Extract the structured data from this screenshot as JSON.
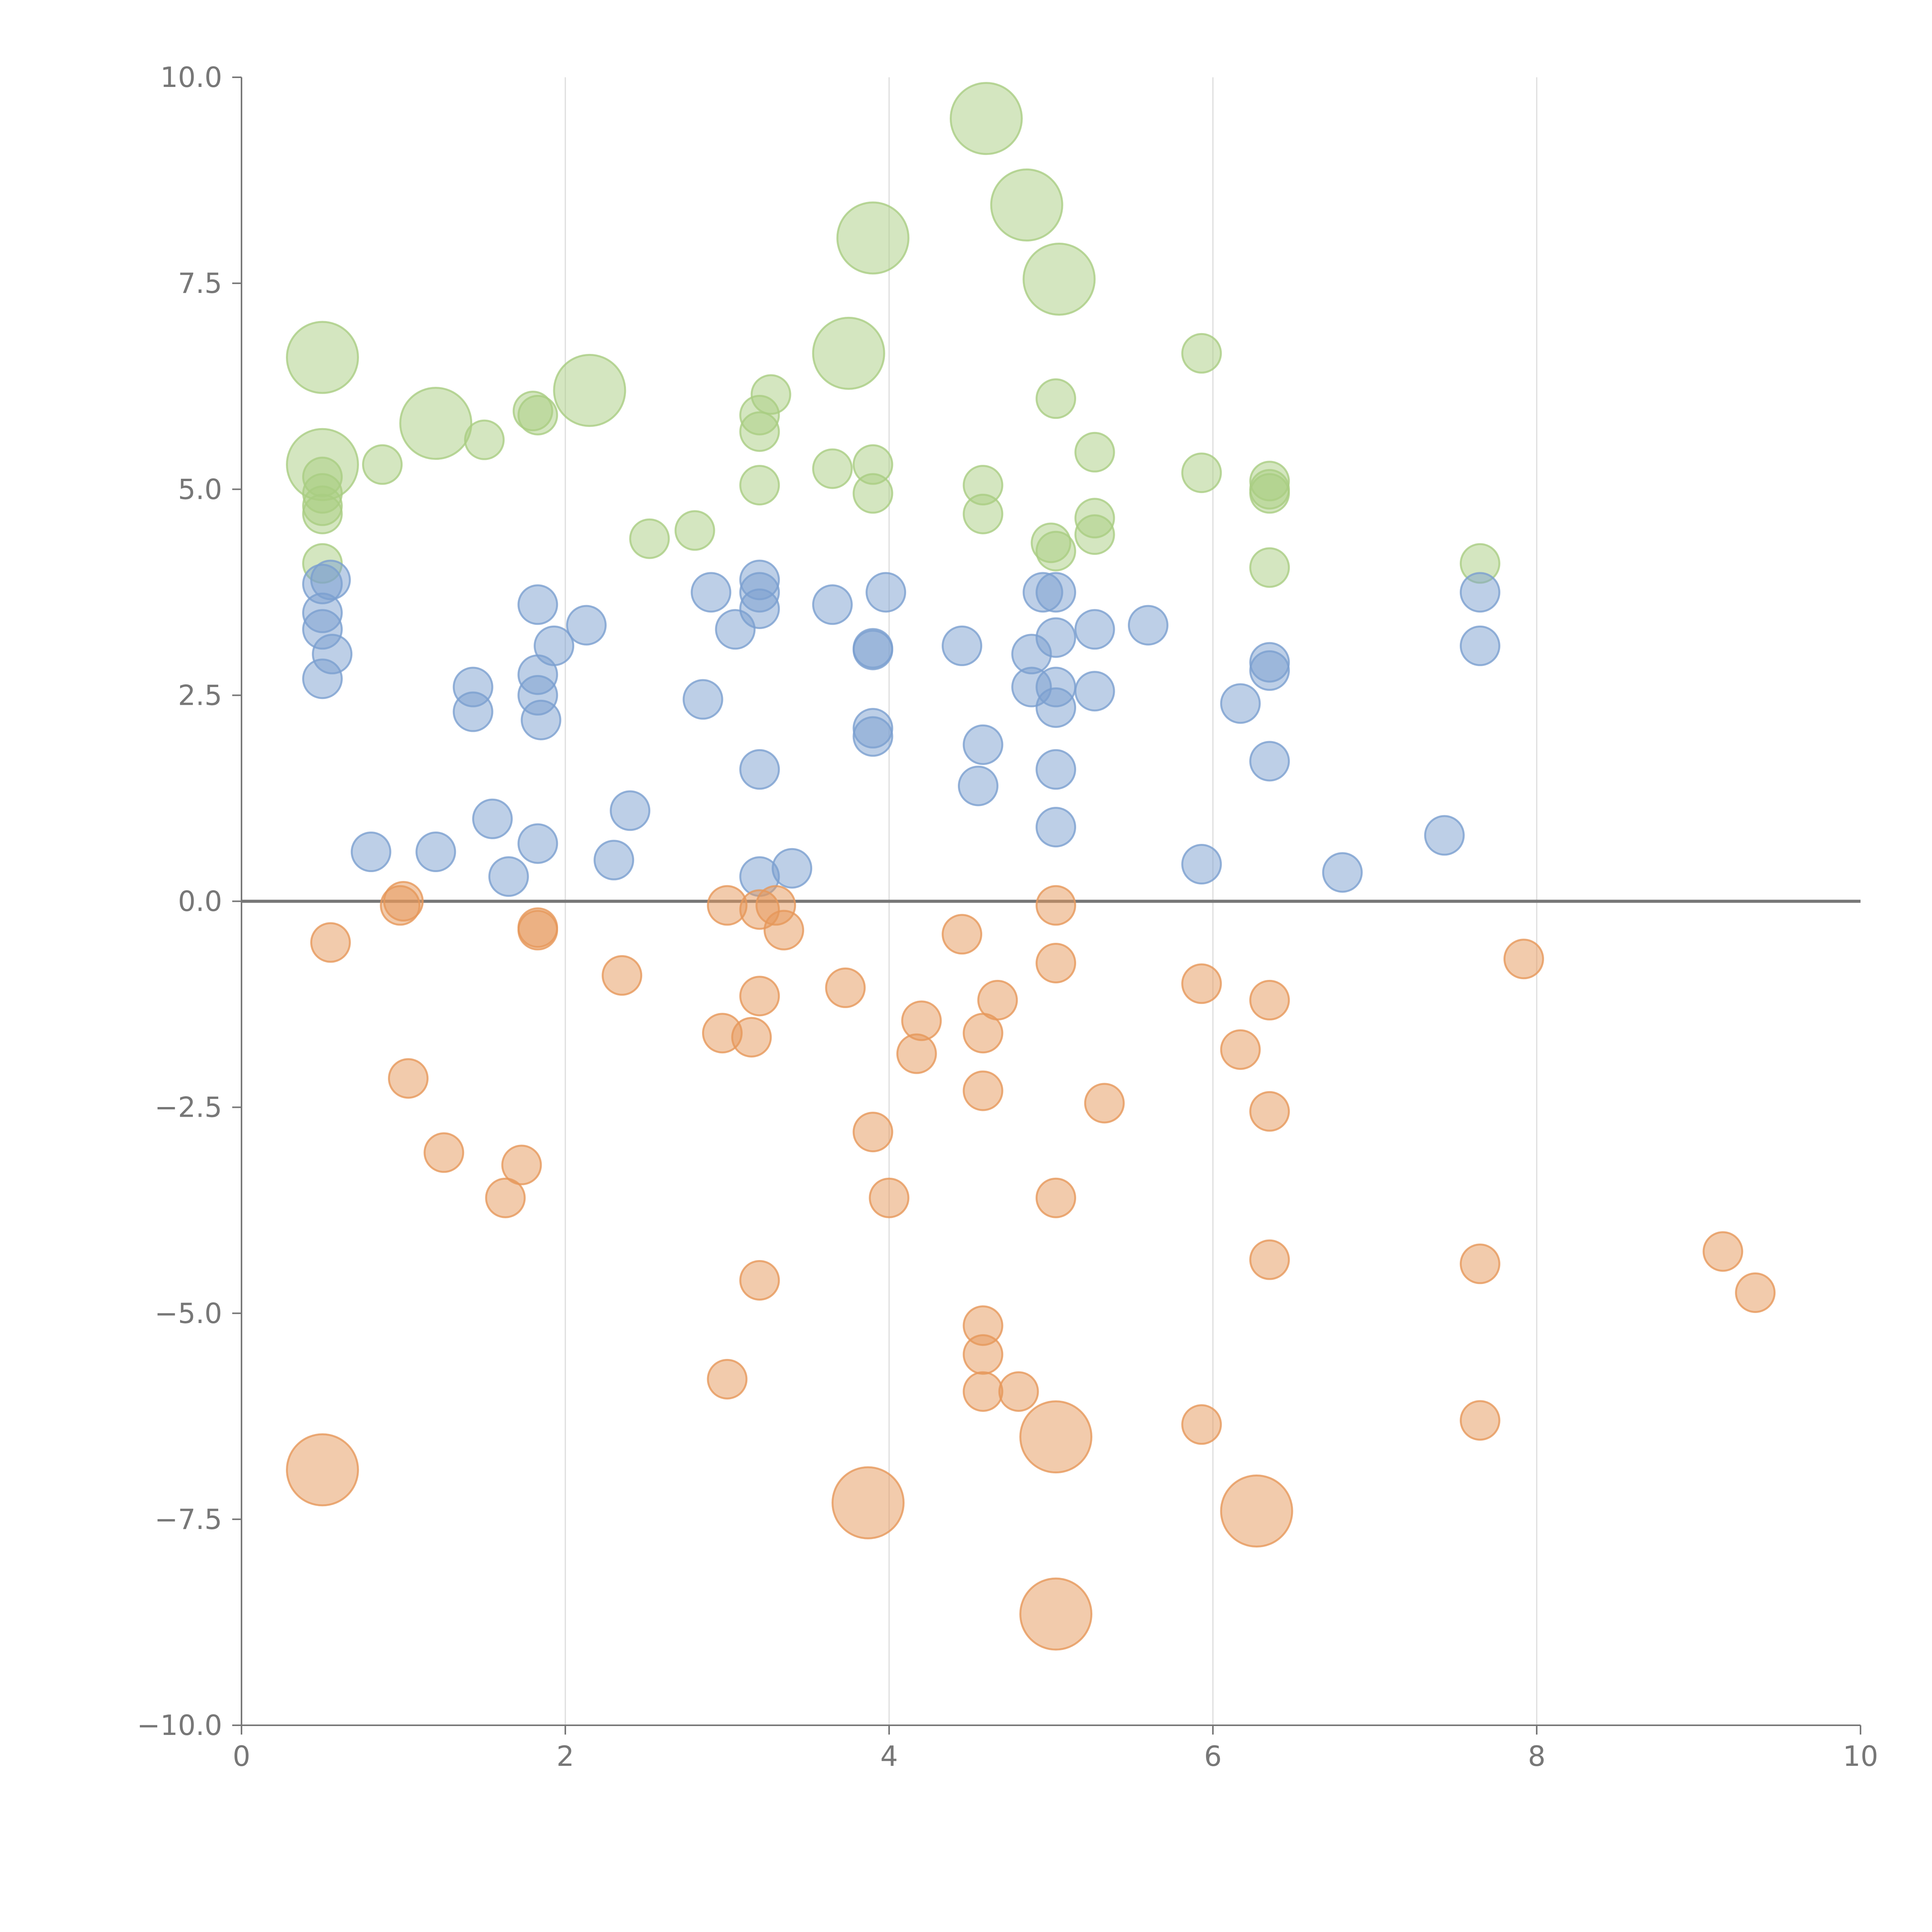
{
  "chart_data": {
    "type": "scatter",
    "title": "",
    "xlabel": "",
    "ylabel": "",
    "xlim": [
      0,
      10
    ],
    "ylim": [
      -10,
      10
    ],
    "grid": "vertical",
    "legend": "none",
    "zero_line": 0,
    "x_ticks": [
      0,
      2,
      4,
      6,
      8,
      10
    ],
    "x_tick_labels": [
      "0",
      "2",
      "4",
      "6",
      "8",
      "10"
    ],
    "y_ticks": [
      10,
      7.5,
      5,
      2.5,
      0,
      -2.5,
      -5,
      -7.5,
      -10
    ],
    "y_tick_labels": [
      "10.0",
      "7.5",
      "5.0",
      "2.5",
      "0.0",
      "−2.5",
      "−5.0",
      "−7.5",
      "−10.0"
    ],
    "colors": {
      "green": "#a9cd82",
      "blue": "#7b9fcf",
      "orange": "#e6975a",
      "axis": "#777777",
      "grid": "#dddddd",
      "zero_line": "#777777"
    },
    "series": [
      {
        "name": "green",
        "color": "#a9cd82",
        "points": [
          [
            0.5,
            6.6,
            "L"
          ],
          [
            0.5,
            5.3,
            "L"
          ],
          [
            1.2,
            5.8,
            "L"
          ],
          [
            2.15,
            6.2,
            "L"
          ],
          [
            3.75,
            6.65,
            "L"
          ],
          [
            3.9,
            8.05,
            "L"
          ],
          [
            4.6,
            9.5,
            "L"
          ],
          [
            4.85,
            8.45,
            "L"
          ],
          [
            5.05,
            7.55,
            "L"
          ],
          [
            0.5,
            5.15,
            "S"
          ],
          [
            0.5,
            4.95,
            "S"
          ],
          [
            0.5,
            4.8,
            "S"
          ],
          [
            0.5,
            4.7,
            "S"
          ],
          [
            0.5,
            4.1,
            "S"
          ],
          [
            0.87,
            5.3,
            "S"
          ],
          [
            1.5,
            5.6,
            "S"
          ],
          [
            1.8,
            5.95,
            "S"
          ],
          [
            1.83,
            5.9,
            "S"
          ],
          [
            2.52,
            4.4,
            "S"
          ],
          [
            2.8,
            4.5,
            "S"
          ],
          [
            3.2,
            5.9,
            "S"
          ],
          [
            3.2,
            5.7,
            "S"
          ],
          [
            3.2,
            5.05,
            "S"
          ],
          [
            3.27,
            6.15,
            "S"
          ],
          [
            3.65,
            5.25,
            "S"
          ],
          [
            3.9,
            5.3,
            "S"
          ],
          [
            3.9,
            4.95,
            "S"
          ],
          [
            4.58,
            5.05,
            "S"
          ],
          [
            4.58,
            4.7,
            "S"
          ],
          [
            5.0,
            4.35,
            "S"
          ],
          [
            5.03,
            4.25,
            "S"
          ],
          [
            5.03,
            6.1,
            "S"
          ],
          [
            5.27,
            5.45,
            "S"
          ],
          [
            5.27,
            4.65,
            "S"
          ],
          [
            5.27,
            4.45,
            "S"
          ],
          [
            5.93,
            6.65,
            "S"
          ],
          [
            5.93,
            5.2,
            "S"
          ],
          [
            6.35,
            5.1,
            "S"
          ],
          [
            6.35,
            5.0,
            "S"
          ],
          [
            6.35,
            4.95,
            "S"
          ],
          [
            6.35,
            4.05,
            "S"
          ],
          [
            7.65,
            4.1,
            "S"
          ]
        ]
      },
      {
        "name": "blue",
        "color": "#7b9fcf",
        "points": [
          [
            0.5,
            3.85,
            "S"
          ],
          [
            0.55,
            3.9,
            "S"
          ],
          [
            0.5,
            3.5,
            "S"
          ],
          [
            0.5,
            3.3,
            "S"
          ],
          [
            0.56,
            3.0,
            "S"
          ],
          [
            0.5,
            2.7,
            "S"
          ],
          [
            0.8,
            0.6,
            "S"
          ],
          [
            1.2,
            0.6,
            "S"
          ],
          [
            1.43,
            2.6,
            "S"
          ],
          [
            1.43,
            2.3,
            "S"
          ],
          [
            1.55,
            1.0,
            "S"
          ],
          [
            1.65,
            0.3,
            "S"
          ],
          [
            1.83,
            3.6,
            "S"
          ],
          [
            1.83,
            2.75,
            "S"
          ],
          [
            1.83,
            2.5,
            "S"
          ],
          [
            1.85,
            2.2,
            "S"
          ],
          [
            1.83,
            0.7,
            "S"
          ],
          [
            1.93,
            3.1,
            "S"
          ],
          [
            2.13,
            3.35,
            "S"
          ],
          [
            2.3,
            0.5,
            "S"
          ],
          [
            2.4,
            1.1,
            "S"
          ],
          [
            2.85,
            2.45,
            "S"
          ],
          [
            2.9,
            3.75,
            "S"
          ],
          [
            3.05,
            3.3,
            "S"
          ],
          [
            3.2,
            3.9,
            "S"
          ],
          [
            3.2,
            3.75,
            "S"
          ],
          [
            3.2,
            3.55,
            "S"
          ],
          [
            3.2,
            1.6,
            "S"
          ],
          [
            3.2,
            0.3,
            "S"
          ],
          [
            3.4,
            0.4,
            "S"
          ],
          [
            3.65,
            3.6,
            "S"
          ],
          [
            3.9,
            3.05,
            "S"
          ],
          [
            3.9,
            3.07,
            "S"
          ],
          [
            3.9,
            2.1,
            "S"
          ],
          [
            3.9,
            2.0,
            "S"
          ],
          [
            3.98,
            3.75,
            "S"
          ],
          [
            4.45,
            3.1,
            "S"
          ],
          [
            4.55,
            1.4,
            "S"
          ],
          [
            4.58,
            1.9,
            "S"
          ],
          [
            4.88,
            3.0,
            "S"
          ],
          [
            4.88,
            2.6,
            "S"
          ],
          [
            4.95,
            3.75,
            "S"
          ],
          [
            5.03,
            3.75,
            "S"
          ],
          [
            5.03,
            3.2,
            "S"
          ],
          [
            5.03,
            2.6,
            "S"
          ],
          [
            5.03,
            2.35,
            "S"
          ],
          [
            5.03,
            1.6,
            "S"
          ],
          [
            5.03,
            0.9,
            "S"
          ],
          [
            5.27,
            3.3,
            "S"
          ],
          [
            5.27,
            2.55,
            "S"
          ],
          [
            5.6,
            3.35,
            "S"
          ],
          [
            5.93,
            0.45,
            "S"
          ],
          [
            6.17,
            2.4,
            "S"
          ],
          [
            6.35,
            2.9,
            "S"
          ],
          [
            6.35,
            2.8,
            "S"
          ],
          [
            6.35,
            1.7,
            "S"
          ],
          [
            6.8,
            0.35,
            "S"
          ],
          [
            7.43,
            0.8,
            "S"
          ],
          [
            7.65,
            3.75,
            "S"
          ],
          [
            7.65,
            3.1,
            "S"
          ]
        ]
      },
      {
        "name": "orange",
        "color": "#e6975a",
        "points": [
          [
            0.5,
            -6.9,
            "L"
          ],
          [
            3.87,
            -7.3,
            "L"
          ],
          [
            5.03,
            -6.5,
            "L"
          ],
          [
            5.03,
            -8.65,
            "L"
          ],
          [
            6.27,
            -7.4,
            "L"
          ],
          [
            0.55,
            -0.5,
            "S"
          ],
          [
            0.98,
            -0.05,
            "S"
          ],
          [
            1.0,
            0.0,
            "S"
          ],
          [
            1.03,
            -2.15,
            "S"
          ],
          [
            1.25,
            -3.05,
            "S"
          ],
          [
            1.63,
            -3.6,
            "S"
          ],
          [
            1.73,
            -3.2,
            "S"
          ],
          [
            1.83,
            -0.35,
            "S"
          ],
          [
            1.83,
            -0.32,
            "S"
          ],
          [
            2.35,
            -0.9,
            "S"
          ],
          [
            2.97,
            -1.6,
            "S"
          ],
          [
            3.0,
            -0.05,
            "S"
          ],
          [
            3.0,
            -5.8,
            "S"
          ],
          [
            3.15,
            -1.65,
            "S"
          ],
          [
            3.2,
            -1.15,
            "S"
          ],
          [
            3.2,
            -0.1,
            "S"
          ],
          [
            3.2,
            -4.6,
            "S"
          ],
          [
            3.3,
            -0.05,
            "S"
          ],
          [
            3.35,
            -0.35,
            "S"
          ],
          [
            3.73,
            -1.05,
            "S"
          ],
          [
            3.9,
            -2.8,
            "S"
          ],
          [
            4.0,
            -3.6,
            "S"
          ],
          [
            4.17,
            -1.85,
            "S"
          ],
          [
            4.2,
            -1.45,
            "S"
          ],
          [
            4.45,
            -0.4,
            "S"
          ],
          [
            4.58,
            -1.6,
            "S"
          ],
          [
            4.58,
            -2.3,
            "S"
          ],
          [
            4.58,
            -5.15,
            "S"
          ],
          [
            4.58,
            -5.5,
            "S"
          ],
          [
            4.58,
            -5.95,
            "S"
          ],
          [
            4.67,
            -1.2,
            "S"
          ],
          [
            4.8,
            -5.95,
            "S"
          ],
          [
            5.03,
            -0.05,
            "S"
          ],
          [
            5.03,
            -0.75,
            "S"
          ],
          [
            5.03,
            -3.6,
            "S"
          ],
          [
            5.33,
            -2.45,
            "S"
          ],
          [
            5.93,
            -1.0,
            "S"
          ],
          [
            5.93,
            -6.35,
            "S"
          ],
          [
            6.17,
            -1.8,
            "S"
          ],
          [
            6.35,
            -1.2,
            "S"
          ],
          [
            6.35,
            -2.55,
            "S"
          ],
          [
            6.35,
            -4.35,
            "S"
          ],
          [
            7.65,
            -4.4,
            "S"
          ],
          [
            7.65,
            -6.3,
            "S"
          ],
          [
            7.92,
            -0.7,
            "S"
          ],
          [
            9.15,
            -4.25,
            "S"
          ],
          [
            9.35,
            -4.75,
            "S"
          ]
        ]
      }
    ]
  }
}
